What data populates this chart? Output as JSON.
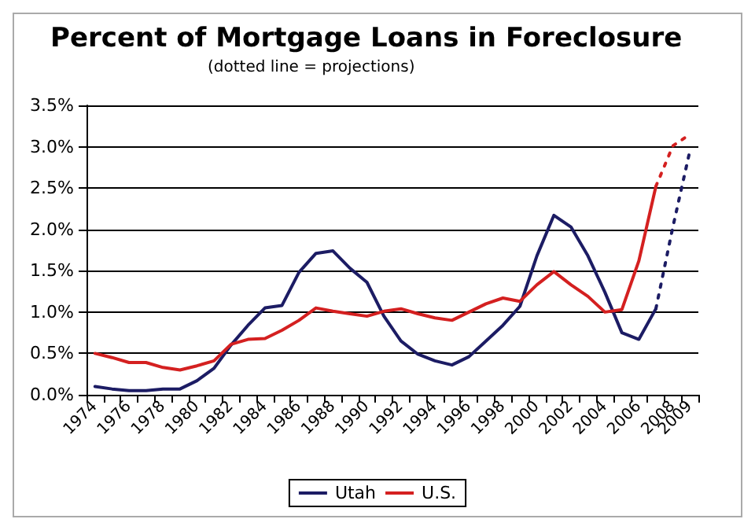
{
  "chart_data": {
    "type": "line",
    "title": "Percent of Mortgage Loans in Foreclosure",
    "subtitle": "(dotted line = projections)",
    "categories": [
      "1974",
      null,
      "1976",
      null,
      "1978",
      null,
      "1980",
      null,
      "1982",
      null,
      "1984",
      null,
      "1986",
      null,
      "1988",
      null,
      "1990",
      null,
      "1992",
      null,
      "1994",
      null,
      "1996",
      null,
      "1998",
      null,
      "2000",
      null,
      "2002",
      null,
      "2004",
      null,
      "2006",
      null,
      "2008",
      "2009"
    ],
    "series": [
      {
        "name": "Utah",
        "color": "#1c1c64",
        "line_style": "solid",
        "values": [
          0.1,
          0.07,
          0.05,
          0.05,
          0.07,
          0.07,
          0.17,
          0.32,
          0.6,
          0.84,
          1.05,
          1.08,
          1.48,
          1.71,
          1.74,
          1.53,
          1.36,
          0.95,
          0.65,
          0.49,
          0.41,
          0.36,
          0.46,
          0.65,
          0.84,
          1.07,
          1.68,
          2.17,
          2.03,
          1.68,
          1.24,
          0.75,
          0.67,
          1.04,
          null,
          null
        ]
      },
      {
        "name": "U.S.",
        "color": "#d42020",
        "line_style": "solid",
        "values": [
          0.5,
          0.45,
          0.39,
          0.39,
          0.33,
          0.3,
          0.35,
          0.41,
          0.61,
          0.67,
          0.68,
          0.78,
          0.9,
          1.05,
          1.01,
          0.98,
          0.95,
          1.01,
          1.04,
          0.98,
          0.93,
          0.9,
          1.0,
          1.1,
          1.17,
          1.13,
          1.33,
          1.49,
          1.33,
          1.19,
          1.0,
          1.03,
          1.62,
          2.52,
          null,
          null
        ]
      },
      {
        "color": "#1c1c64",
        "line_style": "dotted",
        "values": [
          null,
          null,
          null,
          null,
          null,
          null,
          null,
          null,
          null,
          null,
          null,
          null,
          null,
          null,
          null,
          null,
          null,
          null,
          null,
          null,
          null,
          null,
          null,
          null,
          null,
          null,
          null,
          null,
          null,
          null,
          null,
          null,
          null,
          1.04,
          2.03,
          2.95
        ]
      },
      {
        "color": "#d42020",
        "line_style": "dotted",
        "values": [
          null,
          null,
          null,
          null,
          null,
          null,
          null,
          null,
          null,
          null,
          null,
          null,
          null,
          null,
          null,
          null,
          null,
          null,
          null,
          null,
          null,
          null,
          null,
          null,
          null,
          null,
          null,
          null,
          null,
          null,
          null,
          null,
          null,
          2.52,
          3.01,
          3.15
        ]
      }
    ],
    "ylim": [
      0,
      3.5
    ],
    "yticks": [
      {
        "value": 0,
        "label": "0.0%"
      },
      {
        "value": 0.5,
        "label": "0.5%"
      },
      {
        "value": 1,
        "label": "1.0%"
      },
      {
        "value": 1.5,
        "label": "1.5%"
      },
      {
        "value": 2,
        "label": "2.0%"
      },
      {
        "value": 2.5,
        "label": "2.5%"
      },
      {
        "value": 3,
        "label": "3.0%"
      },
      {
        "value": 3.5,
        "label": "3.5%"
      }
    ],
    "grid": "y",
    "legend": "bottom",
    "marker": "none"
  }
}
